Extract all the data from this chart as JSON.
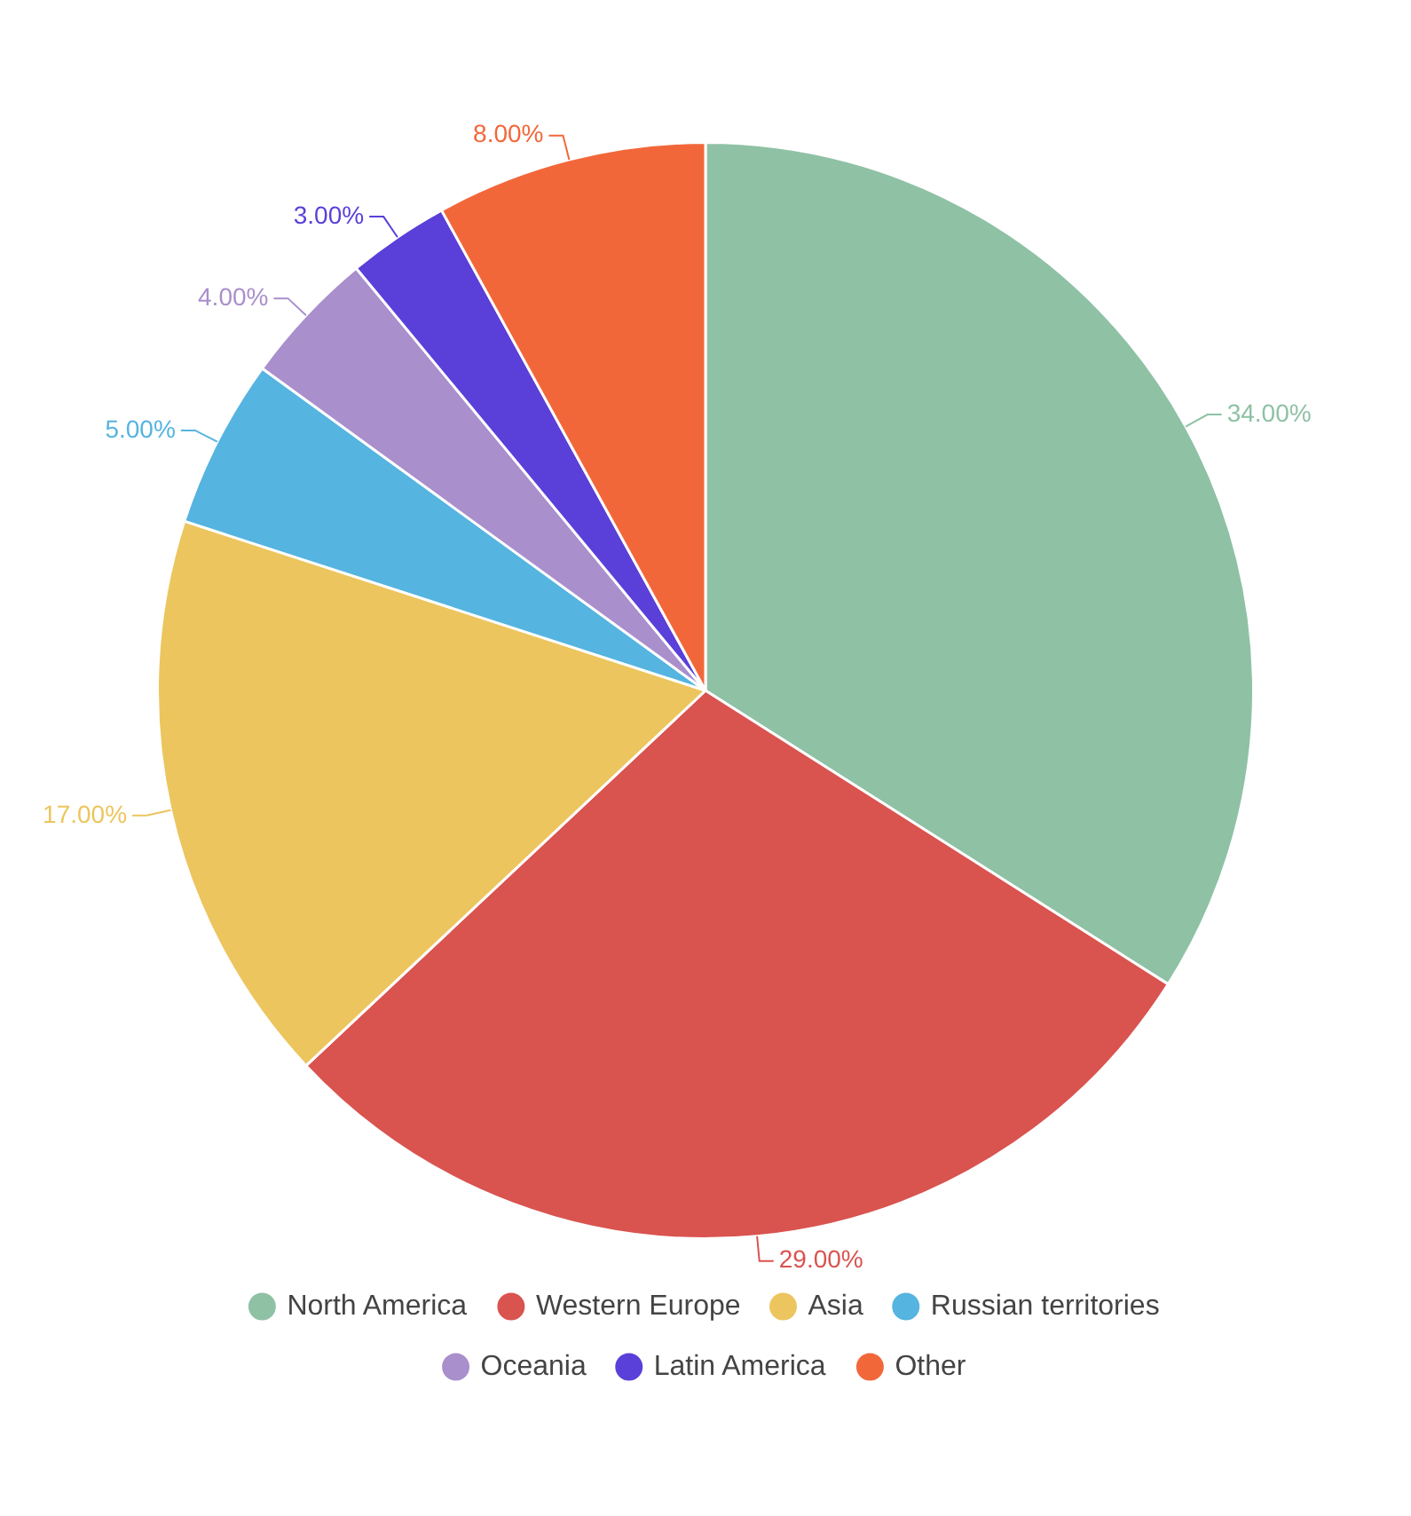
{
  "chart_data": {
    "type": "pie",
    "categories": [
      "North America",
      "Western Europe",
      "Asia",
      "Russian territories",
      "Oceania",
      "Latin America",
      "Other"
    ],
    "values": [
      34,
      29,
      17,
      5,
      4,
      3,
      8
    ],
    "colors": [
      "#8fc1a5",
      "#d9534f",
      "#ecc55e",
      "#55b4e0",
      "#a98fcc",
      "#5b3fd9",
      "#f2673a"
    ],
    "value_labels": [
      "34.00%",
      "29.00%",
      "17.00%",
      "5.00%",
      "4.00%",
      "3.00%",
      "8.00%"
    ],
    "legend": "bottom"
  }
}
